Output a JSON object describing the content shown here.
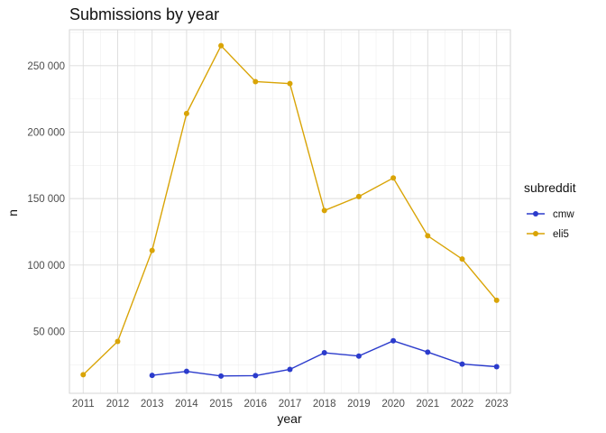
{
  "chart_data": {
    "type": "line",
    "title": "Submissions by year",
    "xlabel": "year",
    "ylabel": "n",
    "x": [
      2011,
      2012,
      2013,
      2014,
      2015,
      2016,
      2017,
      2018,
      2019,
      2020,
      2021,
      2022,
      2023
    ],
    "xlim": [
      2010.6,
      2023.4
    ],
    "ylim": [
      3500,
      277000
    ],
    "yticks": [
      50000,
      100000,
      150000,
      200000,
      250000
    ],
    "ytick_labels": [
      "50 000",
      "100 000",
      "150 000",
      "200 000",
      "250 000"
    ],
    "grid": true,
    "legend": {
      "title": "subreddit",
      "position": "right"
    },
    "series": [
      {
        "name": "cmw",
        "color": "#2b3bcc",
        "x": [
          2013,
          2014,
          2015,
          2016,
          2017,
          2018,
          2019,
          2020,
          2021,
          2022,
          2023
        ],
        "values": [
          17000,
          20000,
          16500,
          16800,
          21500,
          34000,
          31500,
          43000,
          34500,
          25500,
          23500
        ]
      },
      {
        "name": "eli5",
        "color": "#d9a406",
        "x": [
          2011,
          2012,
          2013,
          2014,
          2015,
          2016,
          2017,
          2018,
          2019,
          2020,
          2021,
          2022,
          2023
        ],
        "values": [
          17500,
          42500,
          111000,
          214000,
          265000,
          238000,
          236500,
          141000,
          151500,
          165500,
          122000,
          104500,
          73500
        ]
      }
    ]
  }
}
